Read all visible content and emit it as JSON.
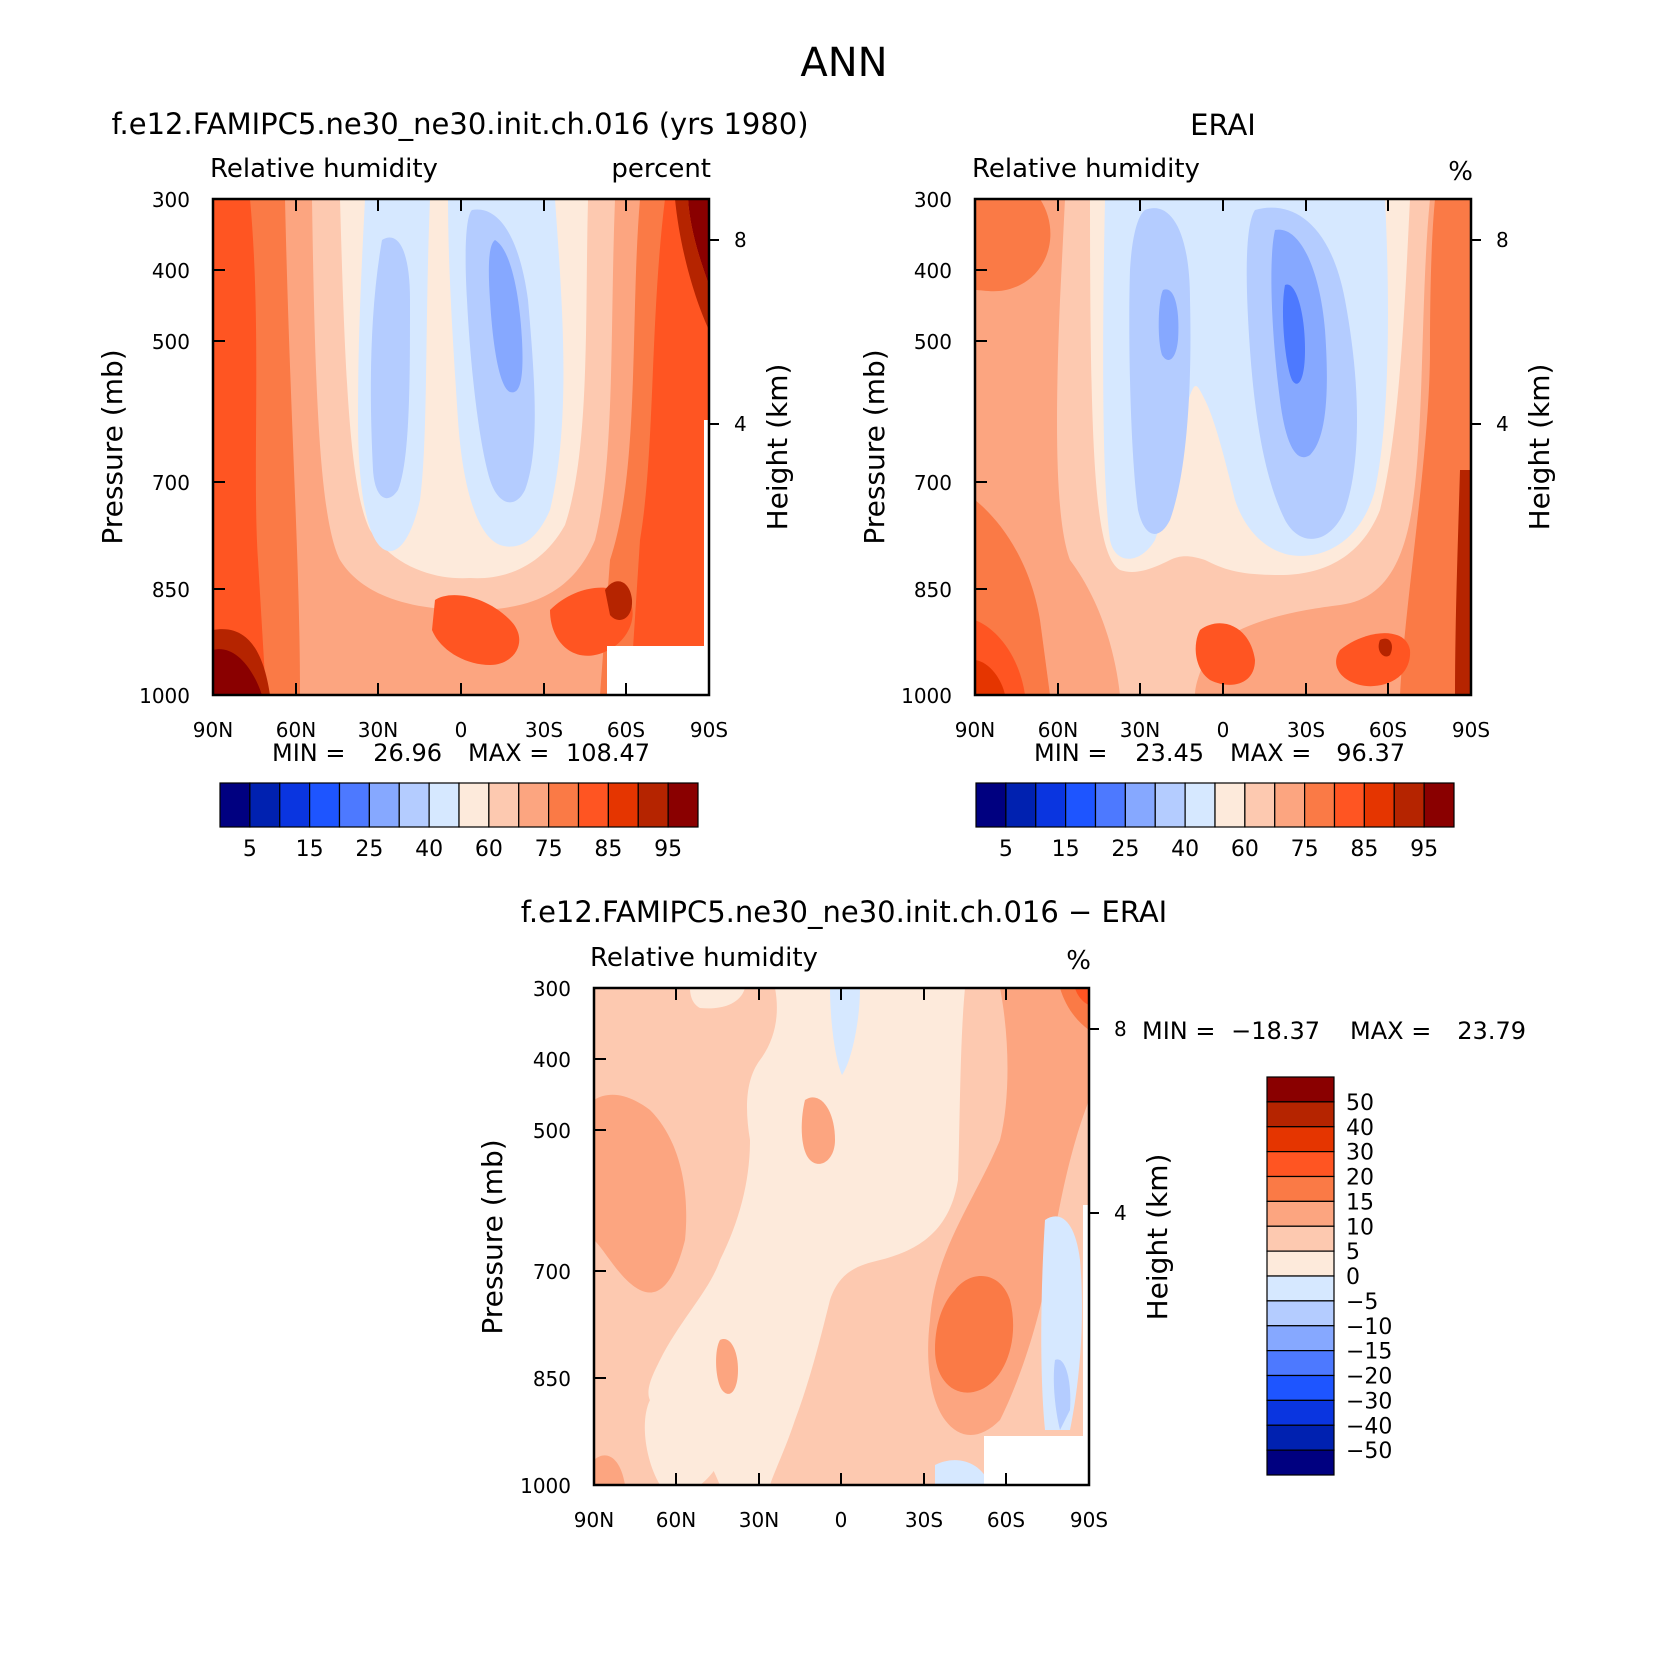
{
  "page_title": "ANN",
  "chart_data": [
    {
      "type": "contour",
      "title": "f.e12.FAMIPC5.ne30_ne30.init.ch.016 (yrs 1980)",
      "variable": "Relative humidity",
      "units": "percent",
      "xlabel": "",
      "ylabel": "Pressure (mb)",
      "y2label": "Height (km)",
      "x_ticks": [
        "90N",
        "60N",
        "30N",
        "0",
        "30S",
        "60S",
        "90S"
      ],
      "y_ticks": [
        "300",
        "400",
        "500",
        "700",
        "850",
        "1000"
      ],
      "y2_ticks": [
        "8",
        "4"
      ],
      "ylim": [
        1000,
        300
      ],
      "stats": {
        "min_label": "MIN =",
        "min": "26.96",
        "max_label": "MAX =",
        "max": "108.47"
      },
      "colorbar": {
        "orientation": "horizontal",
        "labels": [
          "5",
          "15",
          "25",
          "40",
          "60",
          "75",
          "85",
          "95"
        ],
        "colors": [
          "#000080",
          "#0021b0",
          "#0a35e0",
          "#1e55ff",
          "#4d79ff",
          "#86a8ff",
          "#b4ccff",
          "#d6e8ff",
          "#fdeadb",
          "#fdc9b0",
          "#fca580",
          "#fa7a46",
          "#ff5522",
          "#e53500",
          "#b52400",
          "#8a0000"
        ]
      }
    },
    {
      "type": "contour",
      "title": "ERAI",
      "variable": "Relative humidity",
      "units": "%",
      "xlabel": "",
      "ylabel": "Pressure (mb)",
      "y2label": "Height (km)",
      "x_ticks": [
        "90N",
        "60N",
        "30N",
        "0",
        "30S",
        "60S",
        "90S"
      ],
      "y_ticks": [
        "300",
        "400",
        "500",
        "700",
        "850",
        "1000"
      ],
      "y2_ticks": [
        "8",
        "4"
      ],
      "ylim": [
        1000,
        300
      ],
      "stats": {
        "min_label": "MIN =",
        "min": "23.45",
        "max_label": "MAX =",
        "max": "96.37"
      },
      "colorbar": {
        "orientation": "horizontal",
        "labels": [
          "5",
          "15",
          "25",
          "40",
          "60",
          "75",
          "85",
          "95"
        ],
        "colors": [
          "#000080",
          "#0021b0",
          "#0a35e0",
          "#1e55ff",
          "#4d79ff",
          "#86a8ff",
          "#b4ccff",
          "#d6e8ff",
          "#fdeadb",
          "#fdc9b0",
          "#fca580",
          "#fa7a46",
          "#ff5522",
          "#e53500",
          "#b52400",
          "#8a0000"
        ]
      }
    },
    {
      "type": "contour",
      "title": "f.e12.FAMIPC5.ne30_ne30.init.ch.016 − ERAI",
      "variable": "Relative humidity",
      "units": "%",
      "xlabel": "",
      "ylabel": "Pressure (mb)",
      "y2label": "Height (km)",
      "x_ticks": [
        "90N",
        "60N",
        "30N",
        "0",
        "30S",
        "60S",
        "90S"
      ],
      "y_ticks": [
        "300",
        "400",
        "500",
        "700",
        "850",
        "1000"
      ],
      "y2_ticks": [
        "8",
        "4"
      ],
      "ylim": [
        1000,
        300
      ],
      "stats": {
        "min_label": "MIN =",
        "min": "−18.37",
        "max_label": "MAX =",
        "max": "23.79"
      },
      "colorbar": {
        "orientation": "vertical",
        "labels": [
          "50",
          "40",
          "30",
          "20",
          "15",
          "10",
          "5",
          "0",
          "−5",
          "−10",
          "−15",
          "−20",
          "−30",
          "−40",
          "−50"
        ],
        "colors": [
          "#8a0000",
          "#b52400",
          "#e53500",
          "#ff5522",
          "#fa7a46",
          "#fca580",
          "#fdc9b0",
          "#fdeadb",
          "#d6e8ff",
          "#b4ccff",
          "#86a8ff",
          "#4d79ff",
          "#1e55ff",
          "#0a35e0",
          "#0021b0",
          "#000080"
        ]
      }
    }
  ]
}
